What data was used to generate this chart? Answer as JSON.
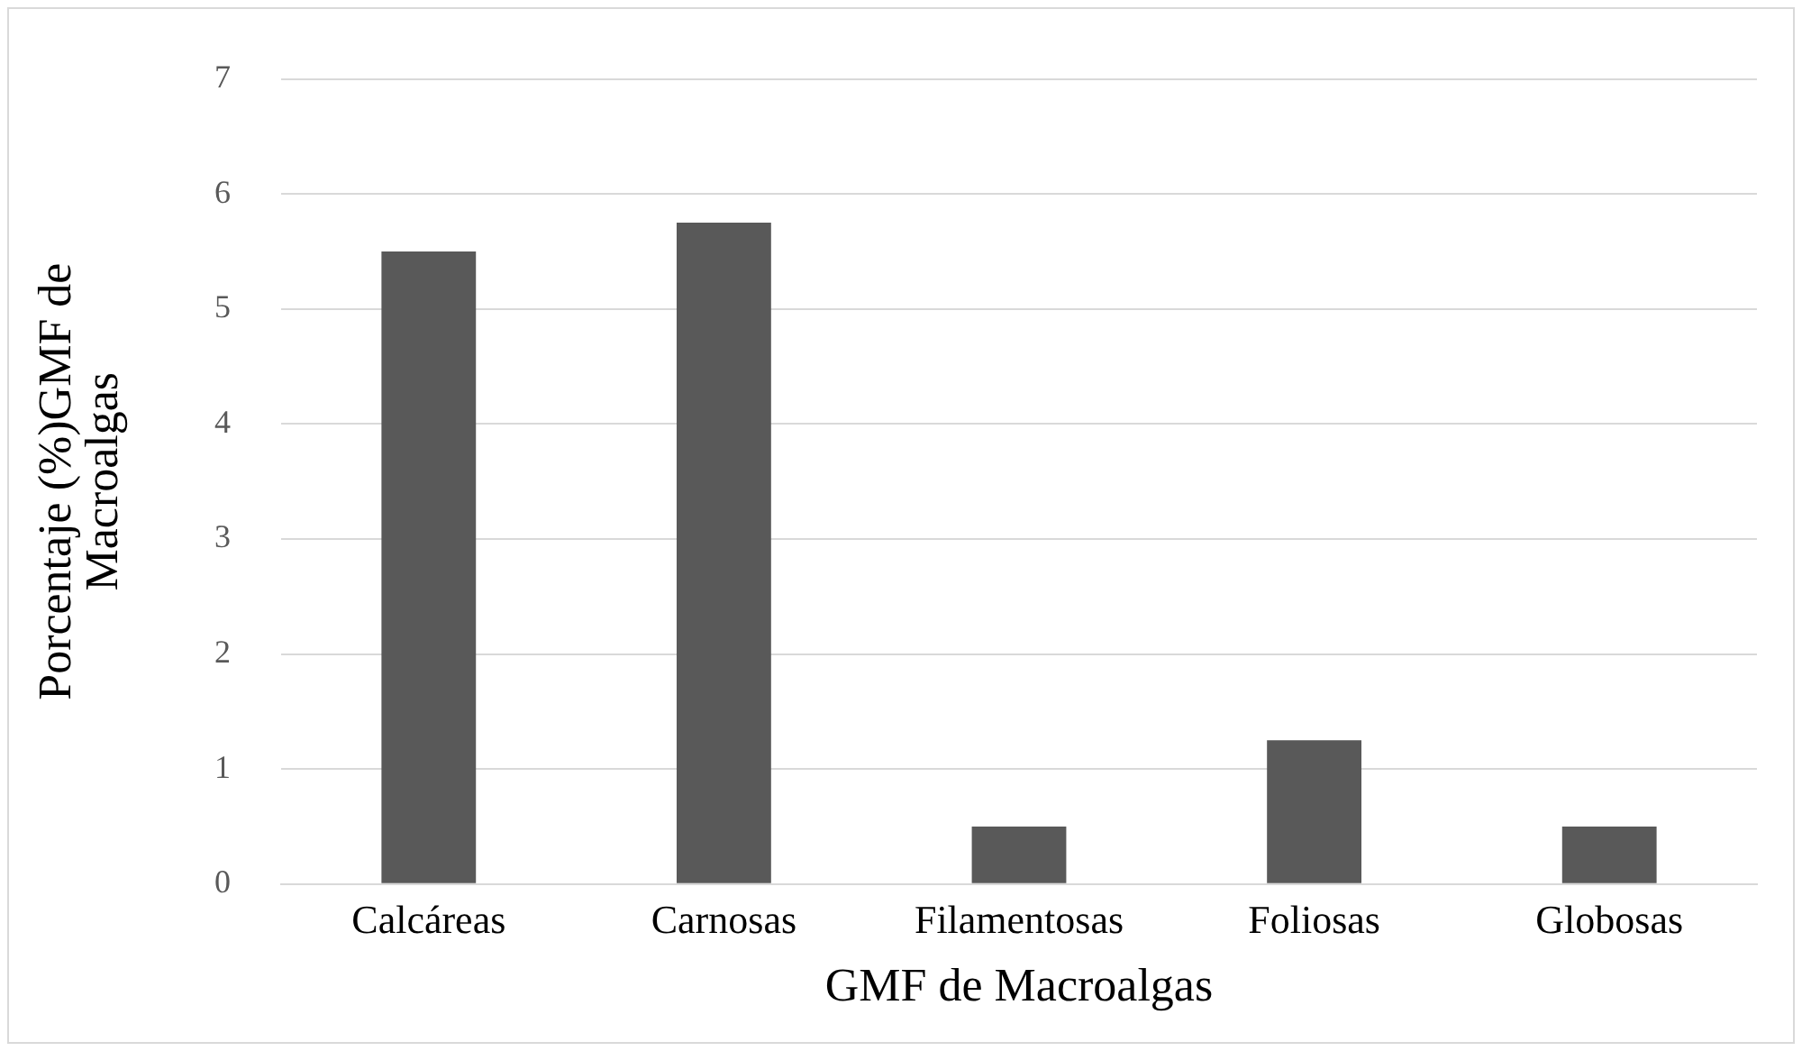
{
  "chart_data": {
    "type": "bar",
    "xlabel": "GMF de Macroalgas",
    "ylabel": "Porcentaje (%)GMF de Macroalgas",
    "categories": [
      "Calcáreas",
      "Carnosas",
      "Filamentosas",
      "Foliosas",
      "Globosas"
    ],
    "values": [
      5.5,
      5.75,
      0.5,
      1.25,
      0.5
    ],
    "color": "#595959",
    "ylim": [
      0,
      7
    ],
    "yticks": [
      0,
      1,
      2,
      3,
      4,
      5,
      6,
      7
    ],
    "grid": "y",
    "legend": false
  }
}
